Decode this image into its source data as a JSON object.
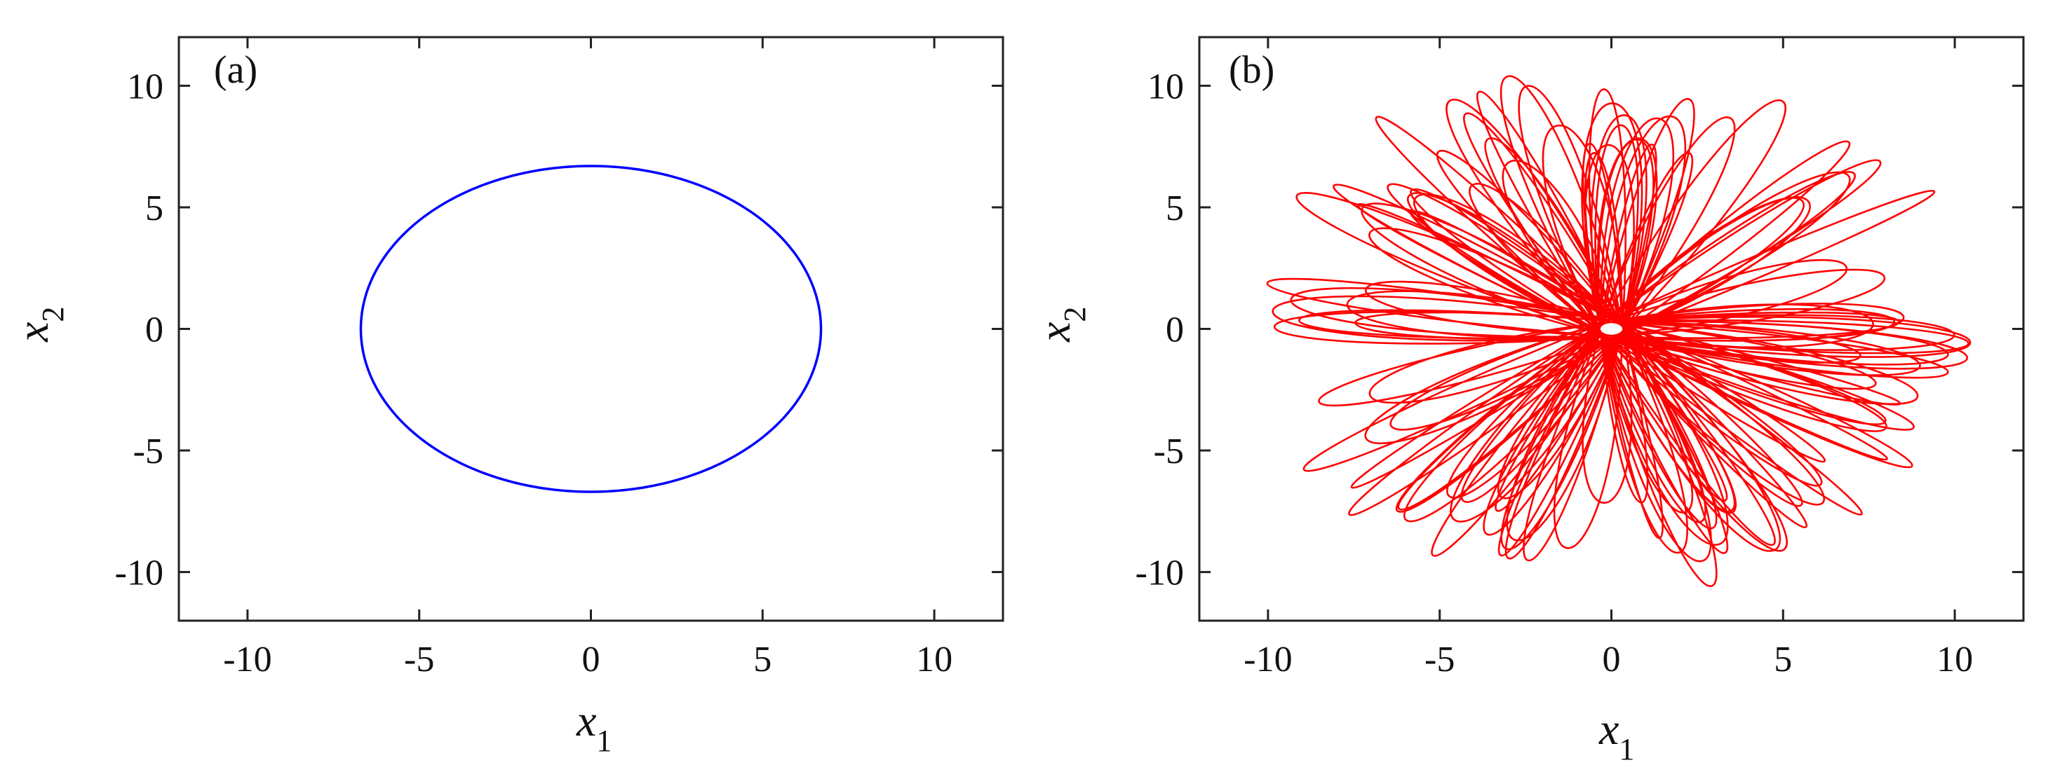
{
  "chart_data": [
    {
      "type": "line",
      "panel_label": "(a)",
      "xlabel": {
        "var": "x",
        "sub": "1"
      },
      "ylabel": {
        "var": "x",
        "sub": "2"
      },
      "xlim": [
        -12,
        12
      ],
      "ylim": [
        -12,
        12
      ],
      "xticks": [
        -10,
        -5,
        0,
        5,
        10
      ],
      "yticks": [
        -10,
        -5,
        0,
        5,
        10
      ],
      "xtick_labels": [
        "-10",
        "-5",
        "0",
        "5",
        "10"
      ],
      "ytick_labels": [
        "-10",
        "-5",
        "0",
        "5",
        "10"
      ],
      "grid": false,
      "series": [
        {
          "color": "#0000ff",
          "shape": "ellipse",
          "center": [
            0,
            0
          ],
          "rx": 6.7,
          "ry": 6.7
        }
      ]
    },
    {
      "type": "line",
      "panel_label": "(b)",
      "xlabel": {
        "var": "x",
        "sub": "1"
      },
      "ylabel": {
        "var": "x",
        "sub": "2"
      },
      "xlim": [
        -12,
        12
      ],
      "ylim": [
        -12,
        12
      ],
      "xticks": [
        -10,
        -5,
        0,
        5,
        10
      ],
      "yticks": [
        -10,
        -5,
        0,
        5,
        10
      ],
      "xtick_labels": [
        "-10",
        "-5",
        "0",
        "5",
        "10"
      ],
      "ytick_labels": [
        "-10",
        "-5",
        "0",
        "5",
        "10"
      ],
      "grid": false,
      "series": [
        {
          "color": "#ff0000",
          "shape": "petal-attractor",
          "petal_count": 120,
          "petal_tip_range": [
            5.0,
            11.3
          ],
          "central_hole_radius": 0.35
        }
      ]
    }
  ]
}
